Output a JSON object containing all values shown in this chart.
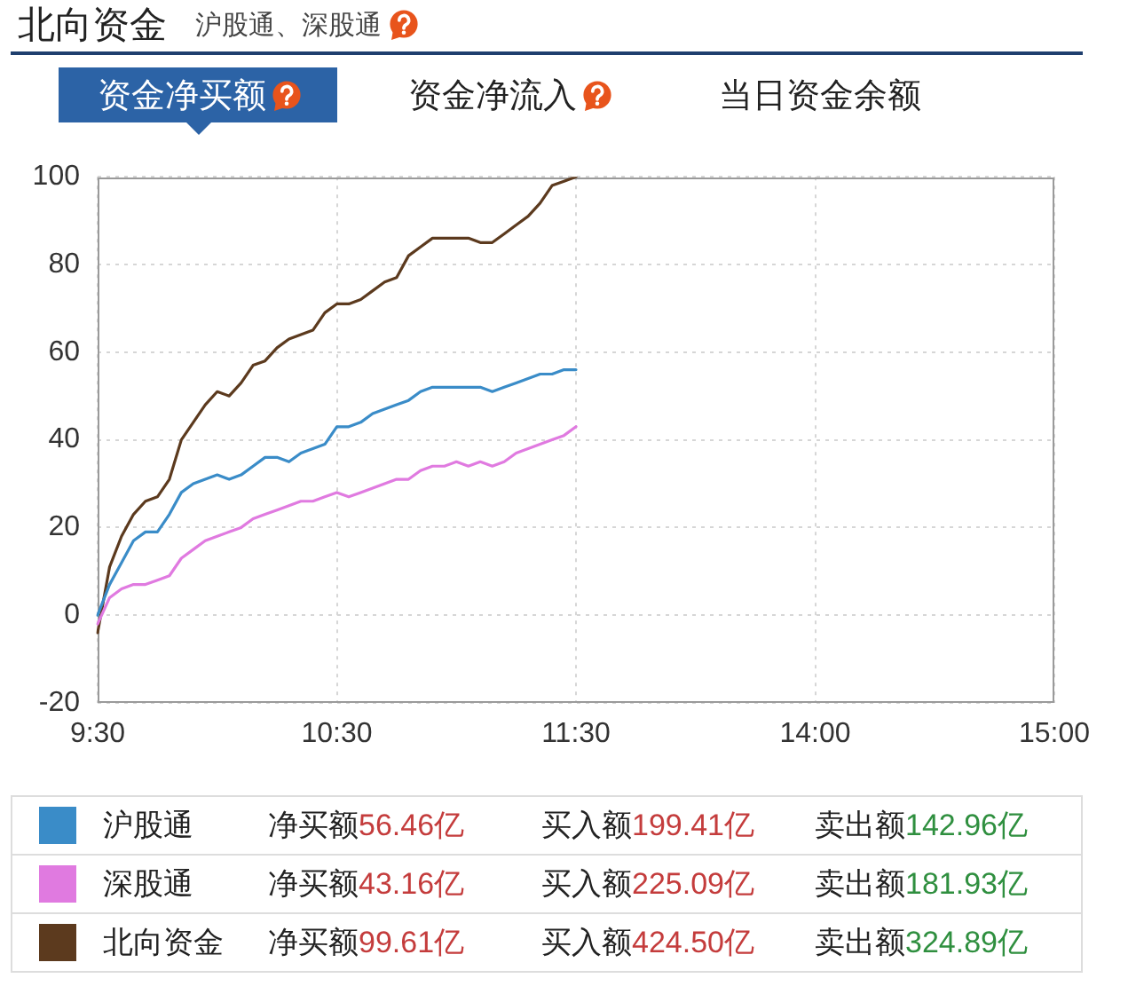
{
  "chart_data": {
    "type": "line",
    "title": "北向资金",
    "subtitle": "沪股通、深股通",
    "annotations": [
      "资金净买额",
      "资金净流入",
      "当日资金余额",
      "净买额56.46亿",
      "买入额199.41亿",
      "卖出额142.96亿",
      "净买额43.16亿",
      "买入额225.09亿",
      "卖出额181.93亿",
      "净买额99.61亿",
      "买入额424.50亿",
      "卖出额324.89亿"
    ],
    "categories": [
      "9:30",
      null,
      null,
      null,
      null,
      null,
      null,
      null,
      null,
      null,
      null,
      null,
      null,
      null,
      null,
      null,
      null,
      null,
      null,
      null,
      "10:30",
      null,
      null,
      null,
      null,
      null,
      null,
      null,
      null,
      null,
      null,
      null,
      null,
      null,
      null,
      null,
      null,
      null,
      null,
      null,
      "11:30",
      null,
      null,
      null,
      null,
      null,
      null,
      null,
      null,
      null,
      null,
      null,
      null,
      null,
      null,
      null,
      null,
      null,
      null,
      null,
      "14:00",
      null,
      null,
      null,
      null,
      null,
      null,
      null,
      null,
      null,
      null,
      null,
      null,
      null,
      null,
      null,
      null,
      null,
      null,
      null,
      "15:00"
    ],
    "ylim": [
      -20,
      100
    ],
    "yticks": [
      -20,
      0,
      20,
      40,
      60,
      80,
      100
    ],
    "grid": true,
    "legend": "bottom",
    "marker": "none",
    "line_style": "solid",
    "series": [
      {
        "name": "沪股通",
        "color": "#3a8cc8",
        "values": [
          0,
          7,
          12,
          17,
          19,
          19,
          23,
          28,
          30,
          31,
          32,
          31,
          32,
          34,
          36,
          36,
          35,
          37,
          38,
          39,
          43,
          43,
          44,
          46,
          47,
          48,
          49,
          51,
          52,
          52,
          52,
          52,
          52,
          51,
          52,
          53,
          54,
          55,
          55,
          56,
          56,
          null,
          null,
          null,
          null,
          null,
          null,
          null,
          null,
          null,
          null,
          null,
          null,
          null,
          null,
          null,
          null,
          null,
          null,
          null,
          null,
          null,
          null,
          null,
          null,
          null,
          null,
          null,
          null,
          null,
          null,
          null,
          null,
          null,
          null,
          null,
          null,
          null,
          null,
          null,
          null
        ]
      },
      {
        "name": "深股通",
        "color": "#e07ae0",
        "values": [
          -2,
          4,
          6,
          7,
          7,
          8,
          9,
          13,
          15,
          17,
          18,
          19,
          20,
          22,
          23,
          24,
          25,
          26,
          26,
          27,
          28,
          27,
          28,
          29,
          30,
          31,
          31,
          33,
          34,
          34,
          35,
          34,
          35,
          34,
          35,
          37,
          38,
          39,
          40,
          41,
          43,
          null,
          null,
          null,
          null,
          null,
          null,
          null,
          null,
          null,
          null,
          null,
          null,
          null,
          null,
          null,
          null,
          null,
          null,
          null,
          null,
          null,
          null,
          null,
          null,
          null,
          null,
          null,
          null,
          null,
          null,
          null,
          null,
          null,
          null,
          null,
          null,
          null,
          null,
          null,
          null
        ]
      },
      {
        "name": "北向资金",
        "color": "#5c3a1e",
        "values": [
          -4,
          11,
          18,
          23,
          26,
          27,
          31,
          40,
          44,
          48,
          51,
          50,
          53,
          57,
          58,
          61,
          63,
          64,
          65,
          69,
          71,
          71,
          72,
          74,
          76,
          77,
          82,
          84,
          86,
          86,
          86,
          86,
          85,
          85,
          87,
          89,
          91,
          94,
          98,
          99,
          100,
          null,
          null,
          null,
          null,
          null,
          null,
          null,
          null,
          null,
          null,
          null,
          null,
          null,
          null,
          null,
          null,
          null,
          null,
          null,
          null,
          null,
          null,
          null,
          null,
          null,
          null,
          null,
          null,
          null,
          null,
          null,
          null,
          null,
          null,
          null,
          null,
          null,
          null,
          null,
          null
        ]
      }
    ]
  }
}
